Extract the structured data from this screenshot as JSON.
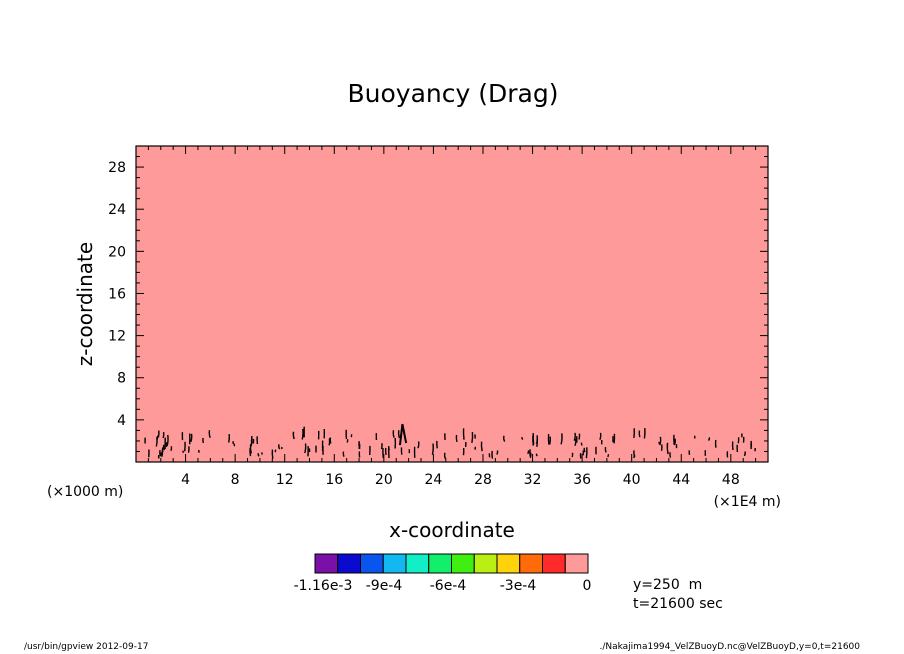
{
  "chart_data": {
    "type": "heatmap",
    "title": "Buoyancy (Drag)",
    "xlabel": "x-coordinate",
    "ylabel": "z-coordinate",
    "x_unit_label": "(×1E4 m)",
    "y_unit_label": "(×1000 m)",
    "xlim": [
      0,
      51
    ],
    "ylim": [
      0,
      30
    ],
    "x_ticks": [
      "4",
      "8",
      "12",
      "16",
      "20",
      "24",
      "28",
      "32",
      "36",
      "40",
      "44",
      "48"
    ],
    "y_ticks": [
      "4",
      "8",
      "12",
      "16",
      "20",
      "24",
      "28"
    ],
    "colorbar": {
      "colors": [
        "#7a10a8",
        "#0b0bcf",
        "#0b55ef",
        "#12b8ef",
        "#12efc6",
        "#12ef6a",
        "#3fef12",
        "#b9ef12",
        "#ffd20b",
        "#ff6a0b",
        "#ff2a2a",
        "#ff9a9a"
      ],
      "tick_labels": [
        "-1.16e-3",
        "-9e-4",
        "-6e-4",
        "-3e-4",
        "0"
      ]
    },
    "field_background_color": "#ff9a9a",
    "dominant_value": "0",
    "contour_region_z": [
      0,
      3.5
    ],
    "annotations": [
      "y=250  m",
      "t=21600 sec"
    ]
  },
  "footer": {
    "left": "/usr/bin/gpview  2012-09-17",
    "right": "./Nakajima1994_VelZBuoyD.nc@VelZBuoyD,y=0,t=21600"
  }
}
